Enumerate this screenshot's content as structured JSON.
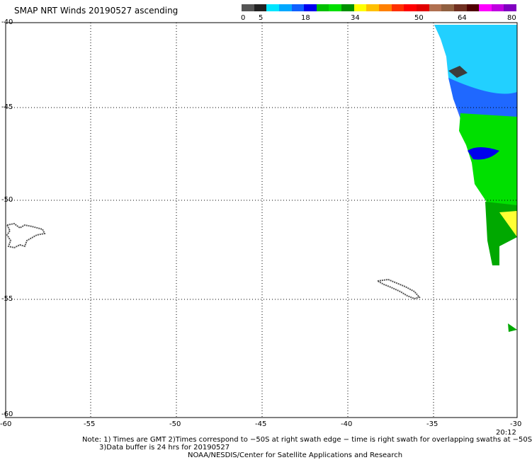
{
  "title": "SMAP NRT Winds 20190527 ascending",
  "colorbar": {
    "labels": [
      "0",
      "5",
      "18",
      "34",
      "50",
      "64",
      "80"
    ],
    "colors": [
      "#555555",
      "#222222",
      "#00e5ff",
      "#00a8ff",
      "#1060ff",
      "#0000ee",
      "#00c000",
      "#00e000",
      "#009000",
      "#ffff00",
      "#ffc000",
      "#ff8000",
      "#ff3000",
      "#ff0000",
      "#e00000",
      "#b07050",
      "#906040",
      "#703020",
      "#500000",
      "#ff00ff",
      "#c000e0",
      "#8000c0"
    ]
  },
  "axes": {
    "x_ticks": [
      "-60",
      "-55",
      "-50",
      "-45",
      "-40",
      "-35",
      "-30"
    ],
    "y_ticks": [
      "-40",
      "-45",
      "-50",
      "-55",
      "-60"
    ],
    "grid": "dotted"
  },
  "time_label": "20:12",
  "notes": {
    "line1": "Note: 1) Times are GMT 2)Times correspond to −50S at right swath edge − time is right swath for overlapping swaths at −50S",
    "line2": "3)Data buffer is 24 hrs for 20190527",
    "line3": "NOAA/NESDIS/Center for Satellite Applications and Research"
  },
  "wind_regions": [
    {
      "name": "light-blue",
      "color": "#22d0ff"
    },
    {
      "name": "blue",
      "color": "#1f5cff"
    },
    {
      "name": "dark-blue",
      "color": "#0000ee"
    },
    {
      "name": "green",
      "color": "#00e000"
    },
    {
      "name": "dark-green",
      "color": "#00a800"
    },
    {
      "name": "yellow",
      "color": "#ffff33"
    },
    {
      "name": "dark-gray",
      "color": "#3c3c3c"
    }
  ]
}
